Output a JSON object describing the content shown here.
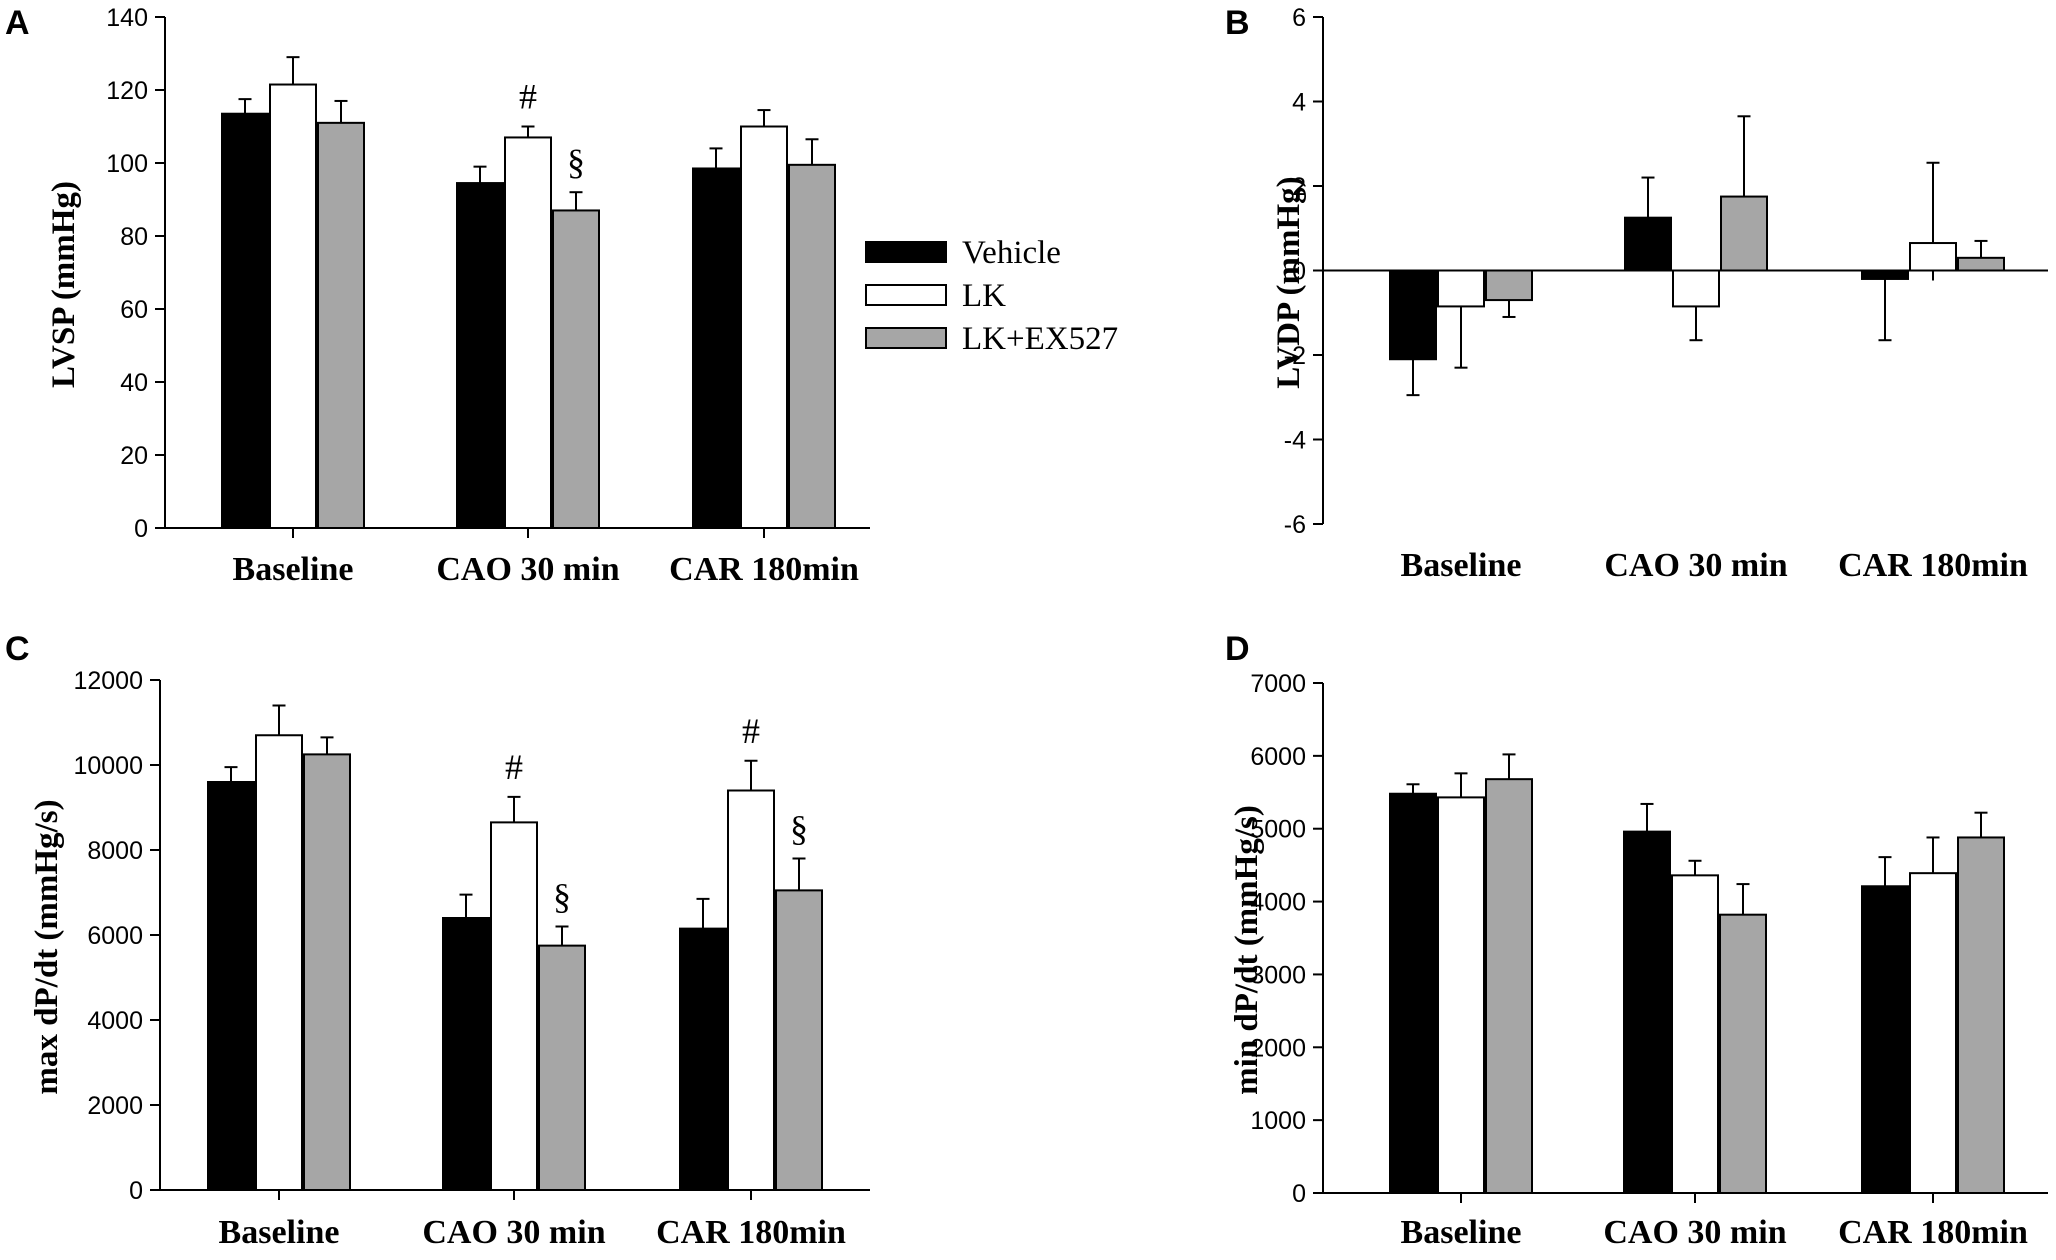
{
  "legend": [
    {
      "label": "Vehicle",
      "color": "#000000"
    },
    {
      "label": "LK",
      "color": "#ffffff"
    },
    {
      "label": "LK+EX527",
      "color": "#a6a6a6"
    }
  ],
  "chart_data": [
    {
      "panel": "A",
      "type": "bar",
      "ylabel": "LVSP (mmHg)",
      "ylim": [
        0,
        140
      ],
      "yticks": [
        0,
        20,
        40,
        60,
        80,
        100,
        120,
        140
      ],
      "categories": [
        "Baseline",
        "CAO 30 min",
        "CAR 180min"
      ],
      "series": [
        {
          "name": "Vehicle",
          "values": [
            113.5,
            94.5,
            98.5
          ],
          "errors": [
            4,
            4.5,
            5.5
          ]
        },
        {
          "name": "LK",
          "values": [
            121.5,
            107,
            110
          ],
          "errors": [
            7.5,
            3,
            4.5
          ]
        },
        {
          "name": "LK+EX527",
          "values": [
            111,
            87,
            99.5
          ],
          "errors": [
            6,
            5,
            7
          ]
        }
      ],
      "annotations": [
        {
          "text": "#",
          "category": 1,
          "series": 1
        },
        {
          "text": "§",
          "category": 1,
          "series": 2
        }
      ]
    },
    {
      "panel": "B",
      "type": "bar",
      "ylabel": "LVDP (mmHg)",
      "ylim": [
        -6,
        6
      ],
      "yticks": [
        -6,
        -4,
        -2,
        0,
        2,
        4,
        6
      ],
      "categories": [
        "Baseline",
        "CAO 30 min",
        "CAR 180min"
      ],
      "series": [
        {
          "name": "Vehicle",
          "values": [
            -2.1,
            1.25,
            -0.2
          ],
          "errors": [
            0.85,
            0.95,
            1.45
          ]
        },
        {
          "name": "LK",
          "values": [
            -0.85,
            -0.85,
            0.65
          ],
          "errors": [
            1.45,
            0.8,
            1.9
          ]
        },
        {
          "name": "LK+EX527",
          "values": [
            -0.7,
            1.75,
            0.3
          ],
          "errors": [
            0.4,
            1.9,
            0.4
          ]
        }
      ],
      "annotations": []
    },
    {
      "panel": "C",
      "type": "bar",
      "ylabel": "max dP/dt (mmHg/s)",
      "ylim": [
        0,
        12000
      ],
      "yticks": [
        0,
        2000,
        4000,
        6000,
        8000,
        10000,
        12000
      ],
      "categories": [
        "Baseline",
        "CAO 30 min",
        "CAR 180min"
      ],
      "series": [
        {
          "name": "Vehicle",
          "values": [
            9600,
            6400,
            6150
          ],
          "errors": [
            350,
            550,
            700
          ]
        },
        {
          "name": "LK",
          "values": [
            10700,
            8650,
            9400
          ],
          "errors": [
            700,
            600,
            700
          ]
        },
        {
          "name": "LK+EX527",
          "values": [
            10250,
            5750,
            7050
          ],
          "errors": [
            400,
            450,
            750
          ]
        }
      ],
      "annotations": [
        {
          "text": "#",
          "category": 1,
          "series": 1
        },
        {
          "text": "§",
          "category": 1,
          "series": 2
        },
        {
          "text": "#",
          "category": 2,
          "series": 1
        },
        {
          "text": "§",
          "category": 2,
          "series": 2
        }
      ]
    },
    {
      "panel": "D",
      "type": "bar",
      "ylabel": "min dP/dt (mmHg/s)",
      "ylim": [
        0,
        7000
      ],
      "yticks": [
        0,
        1000,
        2000,
        3000,
        4000,
        5000,
        6000,
        7000
      ],
      "categories": [
        "Baseline",
        "CAO 30 min",
        "CAR 180min"
      ],
      "series": [
        {
          "name": "Vehicle",
          "values": [
            5480,
            4960,
            4210
          ],
          "errors": [
            130,
            380,
            400
          ]
        },
        {
          "name": "LK",
          "values": [
            5430,
            4360,
            4390
          ],
          "errors": [
            330,
            200,
            490
          ]
        },
        {
          "name": "LK+EX527",
          "values": [
            5680,
            3820,
            4880
          ],
          "errors": [
            340,
            420,
            340
          ]
        }
      ],
      "annotations": []
    }
  ]
}
